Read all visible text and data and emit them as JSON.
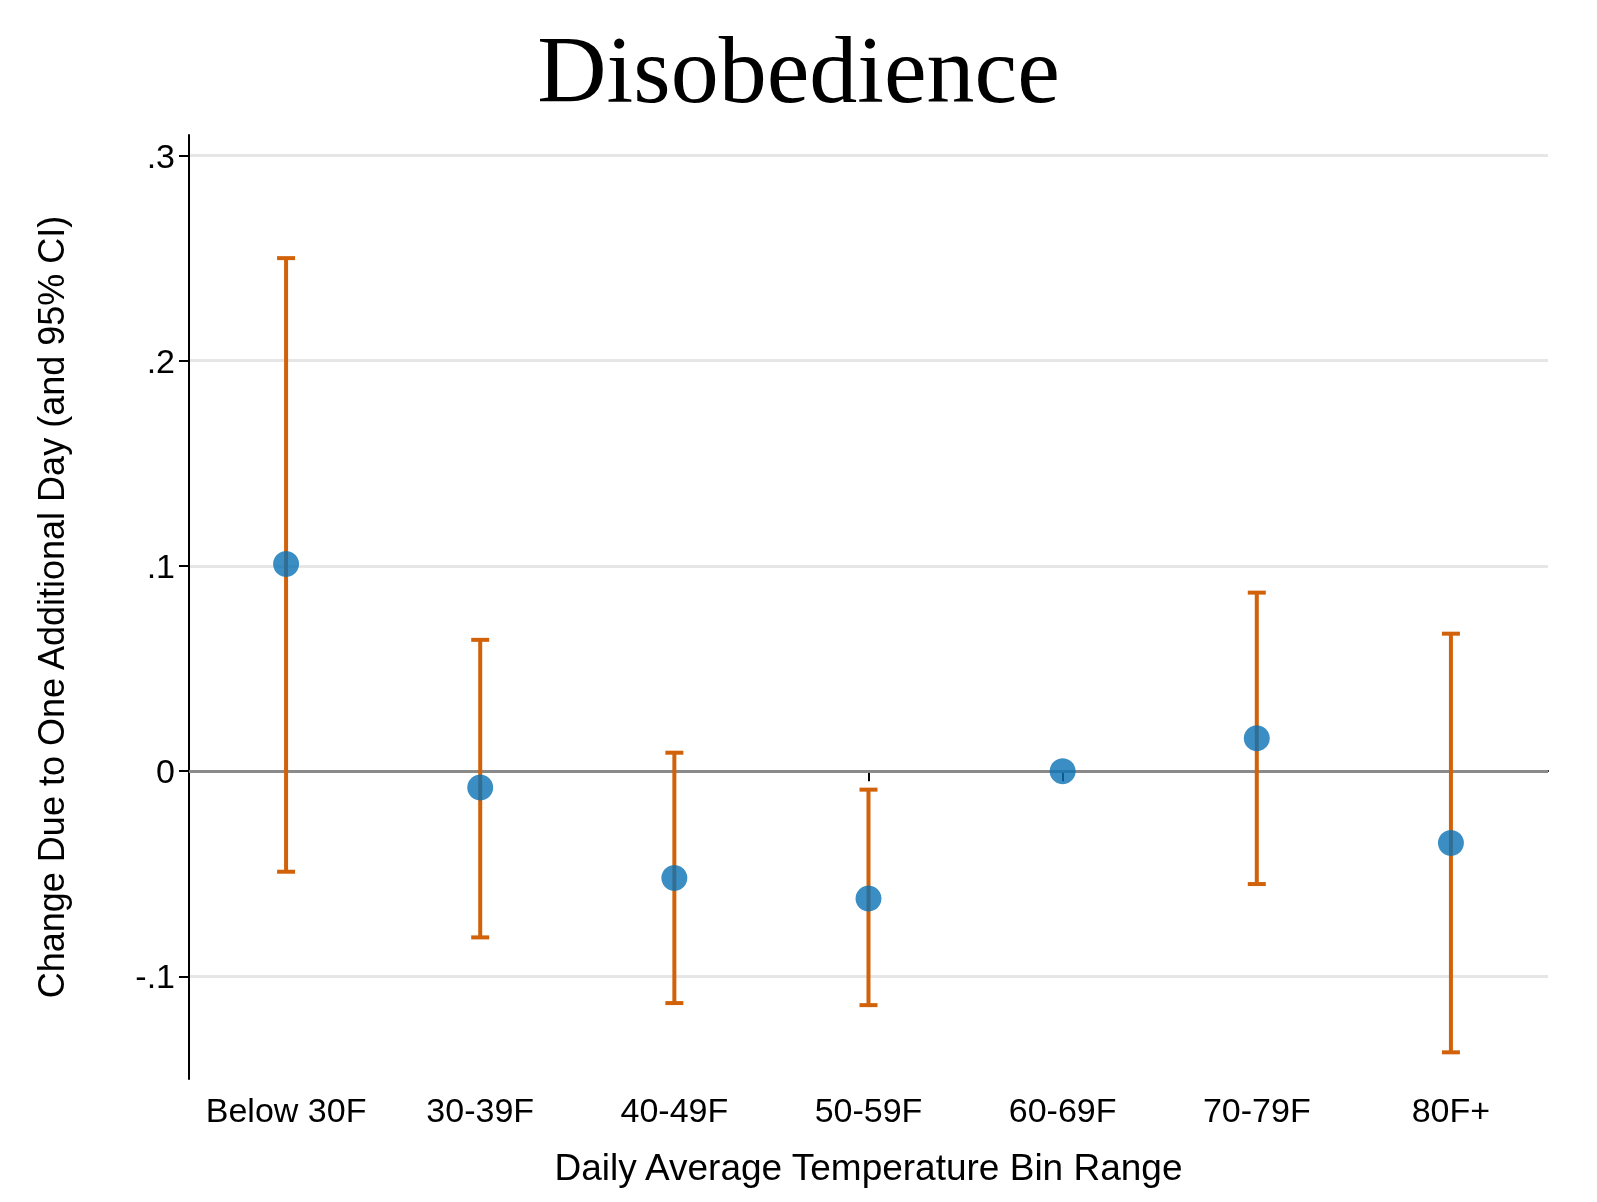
{
  "chart_data": {
    "type": "scatter",
    "title": "Disobedience",
    "xlabel": "Daily Average Temperature Bin Range",
    "ylabel": "Change Due to One Additional Day (and 95% CI)",
    "categories": [
      "Below 30F",
      "30-39F",
      "40-49F",
      "50-59F",
      "60-69F",
      "70-79F",
      "80F+"
    ],
    "values": [
      0.101,
      -0.008,
      -0.052,
      -0.062,
      0,
      0.016,
      -0.035
    ],
    "errors": [
      [
        -0.049,
        0.25
      ],
      [
        -0.081,
        0.064
      ],
      [
        -0.113,
        0.009
      ],
      [
        -0.114,
        -0.009
      ],
      null,
      [
        -0.055,
        0.087
      ],
      [
        -0.137,
        0.067
      ]
    ],
    "color": "#0a72b5",
    "marker": "circle",
    "ylim": [
      -0.15,
      0.31
    ],
    "yticks": [
      {
        "value": -0.1,
        "label": "-.1"
      },
      {
        "value": 0,
        "label": "0"
      },
      {
        "value": 0.1,
        "label": ".1"
      },
      {
        "value": 0.2,
        "label": ".2"
      },
      {
        "value": 0.3,
        "label": ".3"
      }
    ],
    "grid": "y",
    "ref_lines": [
      {
        "axis": "y",
        "value": 0,
        "color": "#8a8a8a"
      }
    ]
  }
}
